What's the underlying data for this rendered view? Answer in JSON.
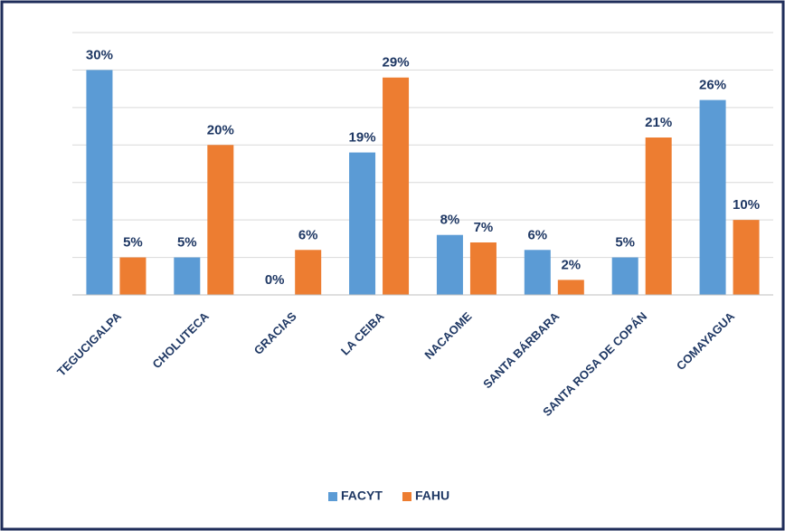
{
  "chart_data": {
    "type": "bar",
    "categories": [
      "TEGUCIGALPA",
      "CHOLUTECA",
      "GRACIAS",
      "LA CEIBA",
      "NACAOME",
      "SANTA BÁRBARA",
      "SANTA ROSA DE COPÁN",
      "COMAYAGUA"
    ],
    "series": [
      {
        "name": "FACYT",
        "color": "#5b9bd5",
        "values": [
          30,
          5,
          0,
          19,
          8,
          6,
          5,
          26
        ],
        "value_labels": [
          "30%",
          "5%",
          "0%",
          "19%",
          "8%",
          "6%",
          "5%",
          "26%"
        ]
      },
      {
        "name": "FAHU",
        "color": "#ed7d31",
        "values": [
          5,
          20,
          6,
          29,
          7,
          2,
          21,
          10
        ],
        "value_labels": [
          "5%",
          "20%",
          "6%",
          "29%",
          "7%",
          "2%",
          "21%",
          "10%"
        ]
      }
    ],
    "ylim": [
      0,
      35
    ],
    "yticks": [
      0,
      5,
      10,
      15,
      20,
      25,
      30,
      35
    ],
    "grid": true,
    "legend": "bottom"
  }
}
